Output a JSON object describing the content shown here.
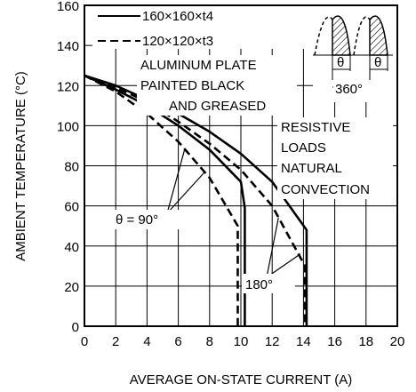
{
  "chart_data": {
    "type": "line",
    "xlabel": "AVERAGE ON-STATE CURRENT  (A)",
    "ylabel": "AMBIENT TEMPERATURE  (°C)",
    "xlim": [
      0,
      20
    ],
    "ylim": [
      0,
      160
    ],
    "x_ticks": [
      "0",
      "2",
      "4",
      "6",
      "8",
      "10",
      "12",
      "14",
      "16",
      "18",
      "20"
    ],
    "y_ticks": [
      "0",
      "20",
      "40",
      "60",
      "80",
      "100",
      "120",
      "140",
      "160"
    ],
    "grid": true,
    "legend": [
      {
        "label": "160×160×t4",
        "style": "solid"
      },
      {
        "label": "120×120×t3",
        "style": "dashed"
      }
    ],
    "annotations": {
      "plate_1": "ALUMINUM PLATE",
      "plate_2": "PAINTED BLACK",
      "plate_3": "AND GREASED",
      "load_1": "RESISTIVE",
      "load_2": "LOADS",
      "load_3": "NATURAL",
      "load_4": "CONVECTION",
      "theta90": "θ = 90°",
      "theta180": "180°",
      "wave_theta_1": "θ",
      "wave_theta_2": "θ",
      "wave_period": "360°"
    },
    "series": [
      {
        "plate": "160×160×t4",
        "conduction": "θ=90°",
        "style": "solid",
        "x": [
          0,
          2,
          4,
          6,
          8,
          10,
          10.25,
          10.25
        ],
        "y": [
          125,
          118,
          110,
          100,
          88,
          72,
          59,
          0
        ]
      },
      {
        "plate": "160×160×t4",
        "conduction": "180°",
        "style": "solid",
        "x": [
          0,
          2,
          4,
          6,
          8,
          10,
          12,
          14.2,
          14.2
        ],
        "y": [
          125,
          120,
          113,
          106,
          97,
          86,
          72,
          48,
          0
        ]
      },
      {
        "plate": "120×120×t3",
        "conduction": "θ=90°",
        "style": "dashed",
        "x": [
          0,
          2,
          4,
          6,
          8,
          9.8,
          9.8
        ],
        "y": [
          125,
          117,
          106,
          92,
          74,
          50,
          0
        ]
      },
      {
        "plate": "120×120×t3",
        "conduction": "180°",
        "style": "dashed",
        "x": [
          0,
          2,
          4,
          6,
          8,
          10,
          12,
          14.1,
          14.1
        ],
        "y": [
          125,
          119,
          112,
          102,
          91,
          78,
          60,
          30,
          0
        ]
      }
    ]
  }
}
